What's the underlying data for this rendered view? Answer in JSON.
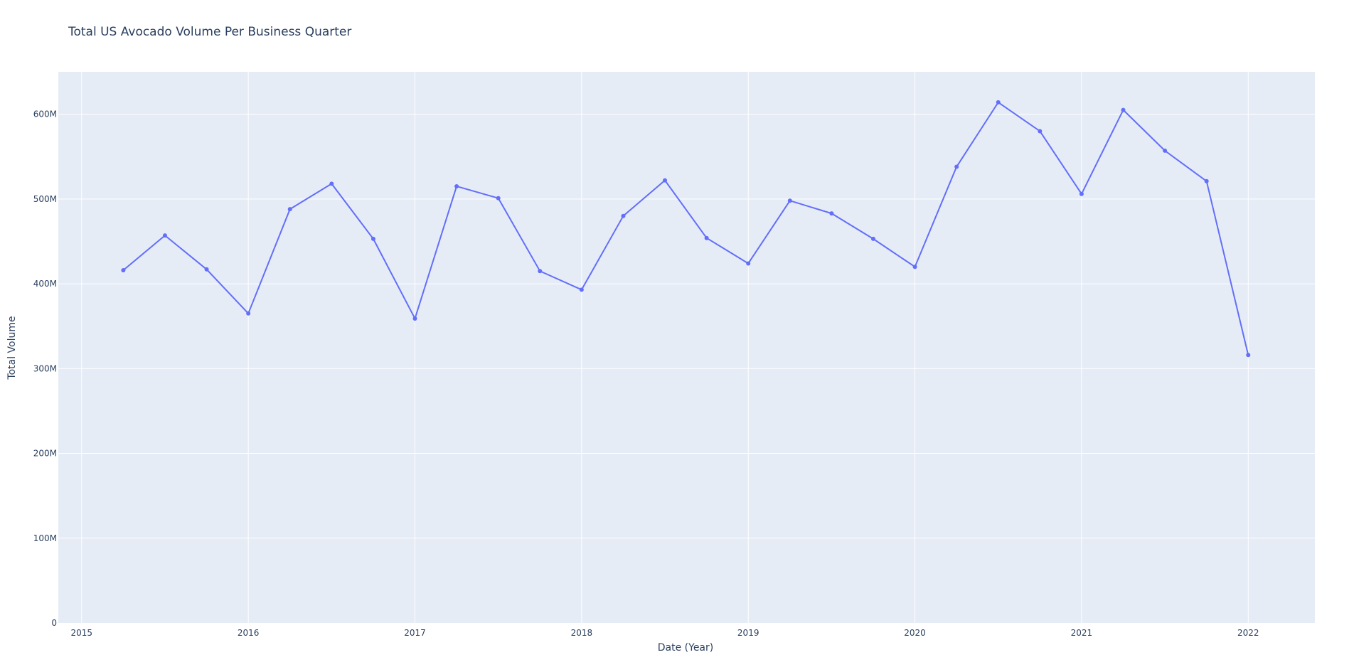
{
  "chart_data": {
    "type": "line",
    "title": "Total US Avocado Volume Per Business Quarter",
    "xlabel": "Date (Year)",
    "ylabel": "Total Volume",
    "x_tick_labels": [
      "2015",
      "2016",
      "2017",
      "2018",
      "2019",
      "2020",
      "2021",
      "2022"
    ],
    "x_tick_values": [
      2015,
      2016,
      2017,
      2018,
      2019,
      2020,
      2021,
      2022
    ],
    "xlim": [
      2014.86,
      2022.4
    ],
    "y_tick_labels": [
      "0",
      "100M",
      "200M",
      "300M",
      "400M",
      "500M",
      "600M"
    ],
    "y_tick_values": [
      0,
      100000000,
      200000000,
      300000000,
      400000000,
      500000000,
      600000000
    ],
    "ylim": [
      0,
      650000000
    ],
    "grid": true,
    "line_color": "#636efa",
    "plot_bg_color": "#e5ecf6",
    "grid_color": "#ffffff",
    "text_color": "#2a3f5f",
    "series": [
      {
        "x": [
          2015.25,
          2015.5,
          2015.75,
          2016.0,
          2016.25,
          2016.5,
          2016.75,
          2017.0,
          2017.25,
          2017.5,
          2017.75,
          2018.0,
          2018.25,
          2018.5,
          2018.75,
          2019.0,
          2019.25,
          2019.5,
          2019.75,
          2020.0,
          2020.25,
          2020.5,
          2020.75,
          2021.0,
          2021.25,
          2021.5,
          2021.75,
          2022.0
        ],
        "values": [
          416000000,
          457000000,
          417000000,
          365000000,
          488000000,
          518000000,
          453000000,
          359000000,
          515000000,
          501000000,
          415000000,
          393000000,
          480000000,
          522000000,
          454000000,
          424000000,
          498000000,
          483000000,
          453000000,
          420000000,
          538000000,
          614000000,
          580000000,
          506000000,
          605000000,
          557000000,
          521000000,
          316000000
        ]
      }
    ]
  }
}
